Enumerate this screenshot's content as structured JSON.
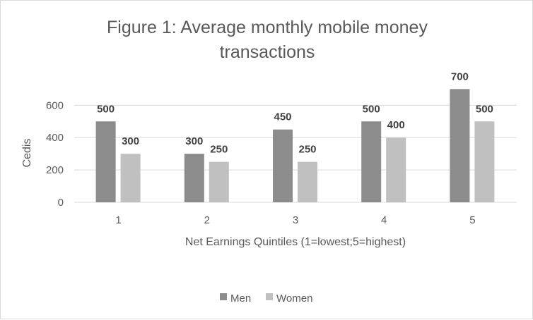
{
  "chart_data": {
    "type": "bar",
    "title_lines": [
      "Figure 1: Average monthly mobile money",
      "transactions"
    ],
    "xlabel": "Net Earnings Quintiles (1=lowest;5=highest)",
    "ylabel": "Cedis",
    "categories": [
      "1",
      "2",
      "3",
      "4",
      "5"
    ],
    "series": [
      {
        "name": "Men",
        "values": [
          500,
          300,
          450,
          500,
          700
        ],
        "color": "#8c8c8c"
      },
      {
        "name": "Women",
        "values": [
          300,
          250,
          250,
          400,
          500
        ],
        "color": "#c0c0c0"
      }
    ],
    "ylim": [
      0,
      700
    ],
    "yticks": [
      0,
      200,
      400,
      600
    ],
    "grid": true,
    "gridline_color": "#d9d9d9",
    "legend_position": "bottom",
    "data_labels": true
  }
}
